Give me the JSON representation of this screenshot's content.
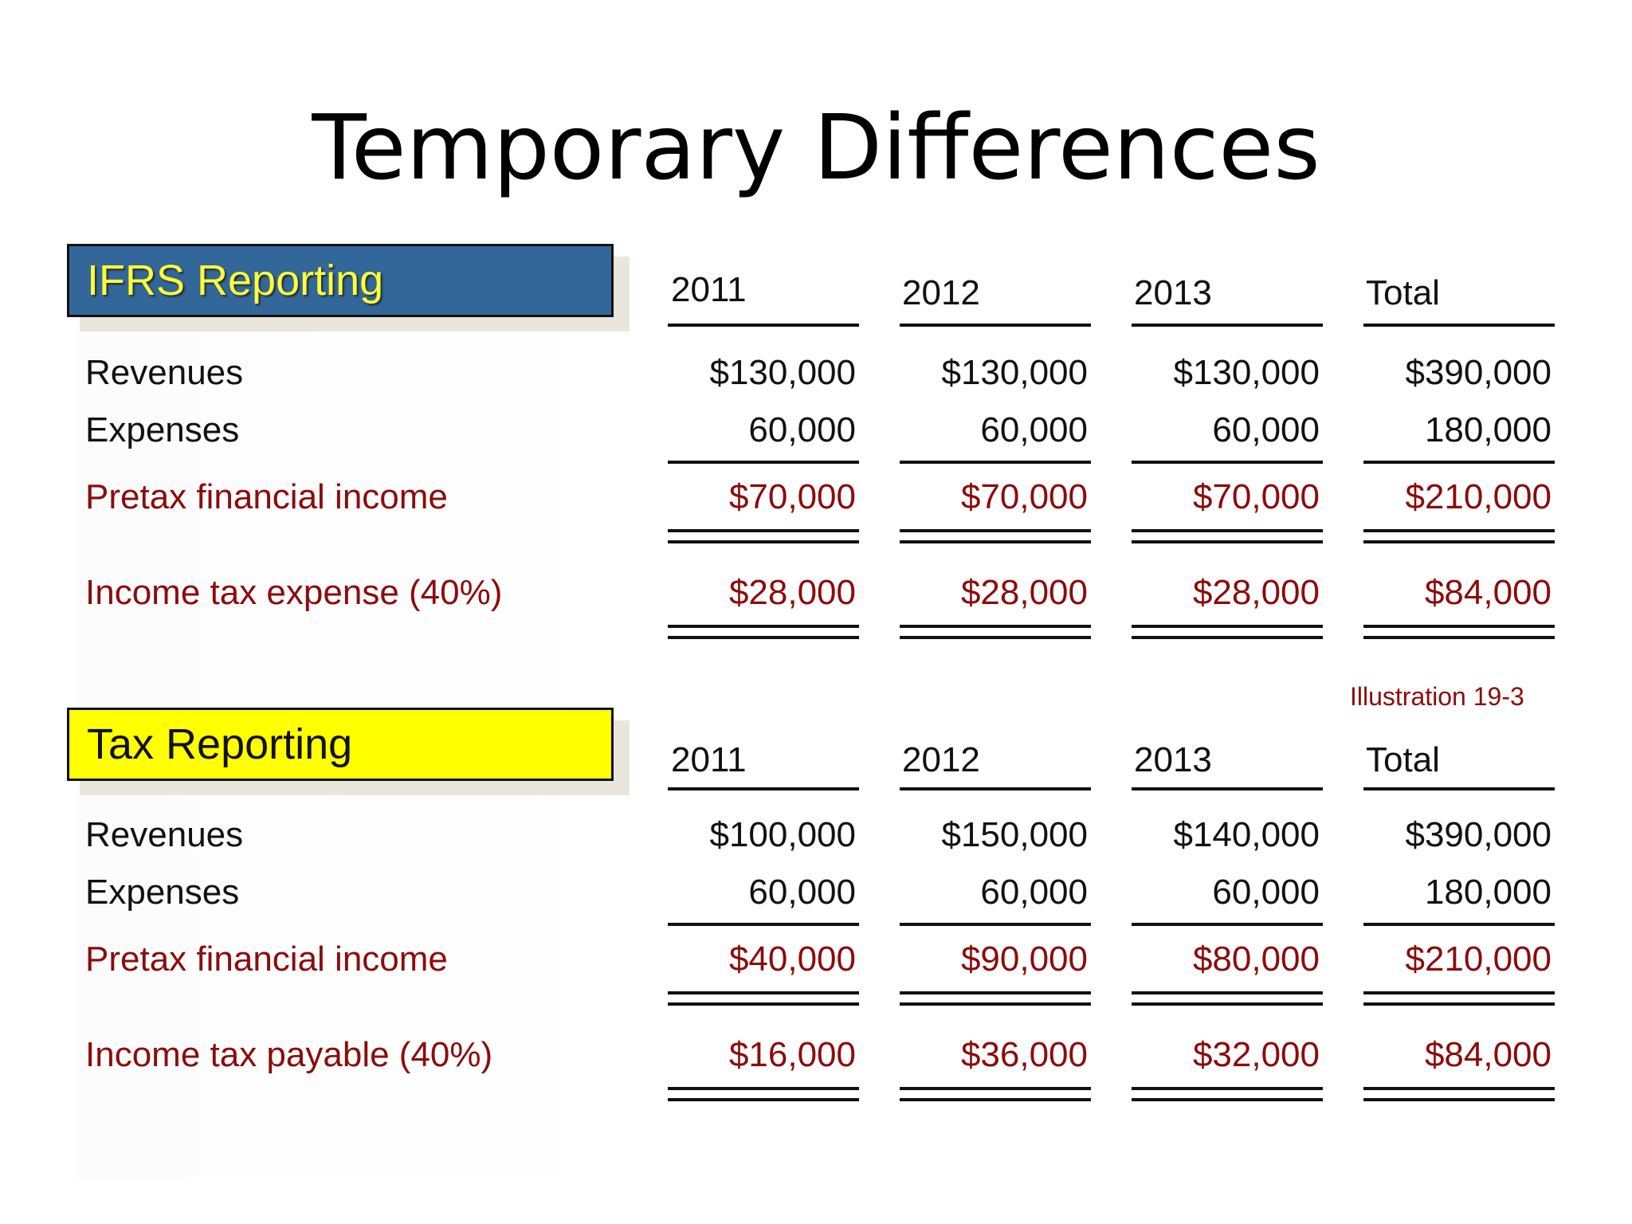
{
  "title": "Temporary Differences",
  "illustration": "Illustration 19-3",
  "columns": [
    "2011",
    "2012",
    "2013",
    "Total"
  ],
  "ifrs": {
    "label": "IFRS Reporting",
    "rows": [
      {
        "label": "Revenues",
        "values": [
          "$130,000",
          "$130,000",
          "$130,000",
          "$390,000"
        ]
      },
      {
        "label": "Expenses",
        "values": [
          "60,000",
          "60,000",
          "60,000",
          "180,000"
        ]
      },
      {
        "label": "Pretax financial income",
        "values": [
          "$70,000",
          "$70,000",
          "$70,000",
          "$210,000"
        ]
      },
      {
        "label": "Income tax expense (40%)",
        "values": [
          "$28,000",
          "$28,000",
          "$28,000",
          "$84,000"
        ]
      }
    ]
  },
  "tax": {
    "label": "Tax Reporting",
    "rows": [
      {
        "label": "Revenues",
        "values": [
          "$100,000",
          "$150,000",
          "$140,000",
          "$390,000"
        ]
      },
      {
        "label": "Expenses",
        "values": [
          "60,000",
          "60,000",
          "60,000",
          "180,000"
        ]
      },
      {
        "label": "Pretax financial income",
        "values": [
          "$40,000",
          "$90,000",
          "$80,000",
          "$210,000"
        ]
      },
      {
        "label": "Income tax payable (40%)",
        "values": [
          "$16,000",
          "$36,000",
          "$32,000",
          "$84,000"
        ]
      }
    ]
  },
  "colors": {
    "ifrs_box": "#336699",
    "ifrs_text": "#ffff33",
    "tax_box": "#ffff00",
    "highlight_text": "#8b0c0c"
  }
}
